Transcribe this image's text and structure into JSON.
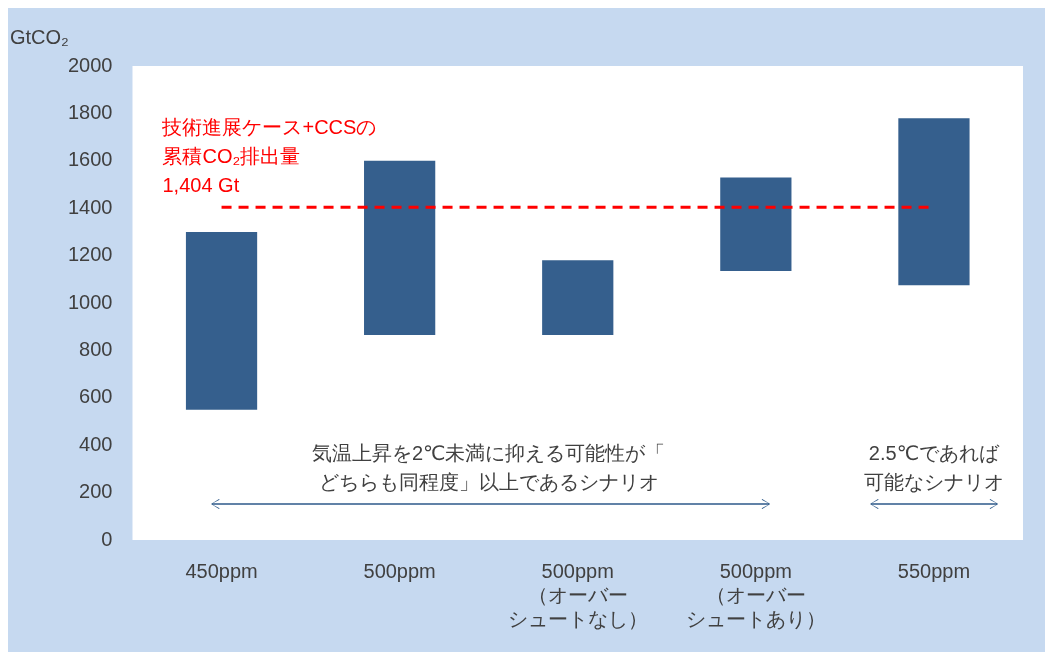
{
  "chart_data": {
    "type": "bar",
    "ylabel": "GtCO₂",
    "categories": [
      "450ppm",
      "500ppm",
      "500ppm（オーバーシュートなし）",
      "500ppm（オーバーシュートあり）",
      "550ppm"
    ],
    "base": [
      550,
      865,
      865,
      1135,
      1075
    ],
    "values": [
      750,
      735,
      315,
      395,
      705
    ],
    "color": "#355f8d",
    "ylim": [
      0,
      2000
    ],
    "yticks": [
      0,
      200,
      400,
      600,
      800,
      1000,
      1200,
      1400,
      1600,
      1800,
      2000
    ],
    "grid": false,
    "legend": false,
    "ref_lines": [
      {
        "axis": "y",
        "value": 1404,
        "label": "技術進展ケース+CCSの累積CO₂排出量1,404 Gt",
        "color": "#ff0000",
        "line_style": "dashed"
      }
    ],
    "annotations": [
      "気温上昇を2℃未満に抑える可能性が「どちらも同程度」以上であるシナリオ",
      "2.5℃であれば可能なシナリオ"
    ]
  }
}
